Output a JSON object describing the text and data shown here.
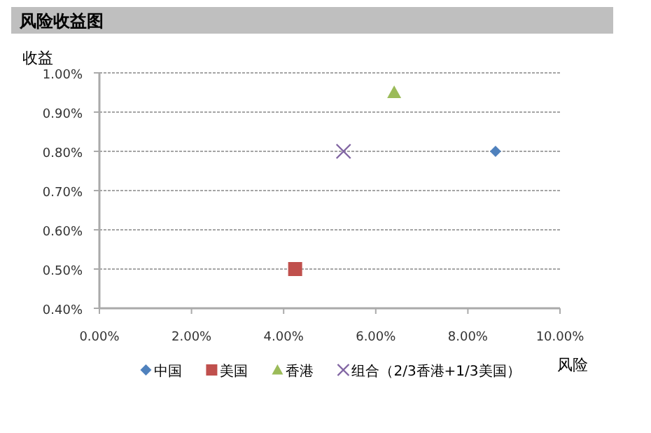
{
  "chart_data": {
    "type": "scatter",
    "title": "风险收益图",
    "xlabel": "风险",
    "ylabel": "收益",
    "xlim": [
      0,
      10
    ],
    "ylim": [
      0.4,
      1.0
    ],
    "xticks": [
      {
        "value": 0,
        "label": "0.00%"
      },
      {
        "value": 2,
        "label": "2.00%"
      },
      {
        "value": 4,
        "label": "4.00%"
      },
      {
        "value": 6,
        "label": "6.00%"
      },
      {
        "value": 8,
        "label": "8.00%"
      },
      {
        "value": 10,
        "label": "10.00%"
      }
    ],
    "yticks": [
      {
        "value": 0.4,
        "label": "0.40%"
      },
      {
        "value": 0.5,
        "label": "0.50%"
      },
      {
        "value": 0.6,
        "label": "0.60%"
      },
      {
        "value": 0.7,
        "label": "0.70%"
      },
      {
        "value": 0.8,
        "label": "0.80%"
      },
      {
        "value": 0.9,
        "label": "0.90%"
      },
      {
        "value": 1.0,
        "label": "1.00%"
      }
    ],
    "grid": "y",
    "legend": "bottom",
    "series": [
      {
        "name": "中国",
        "color": "#4f81bd",
        "marker": "diamond",
        "x": [
          8.6
        ],
        "values": [
          0.8
        ]
      },
      {
        "name": "美国",
        "color": "#c0504d",
        "marker": "square",
        "x": [
          4.25
        ],
        "values": [
          0.5
        ]
      },
      {
        "name": "香港",
        "color": "#9bbb59",
        "marker": "triangle",
        "x": [
          6.4
        ],
        "values": [
          0.95
        ]
      },
      {
        "name": "组合（2/3香港+1/3美国）",
        "color": "#8064a2",
        "marker": "cross",
        "x": [
          5.3
        ],
        "values": [
          0.8
        ]
      }
    ]
  }
}
